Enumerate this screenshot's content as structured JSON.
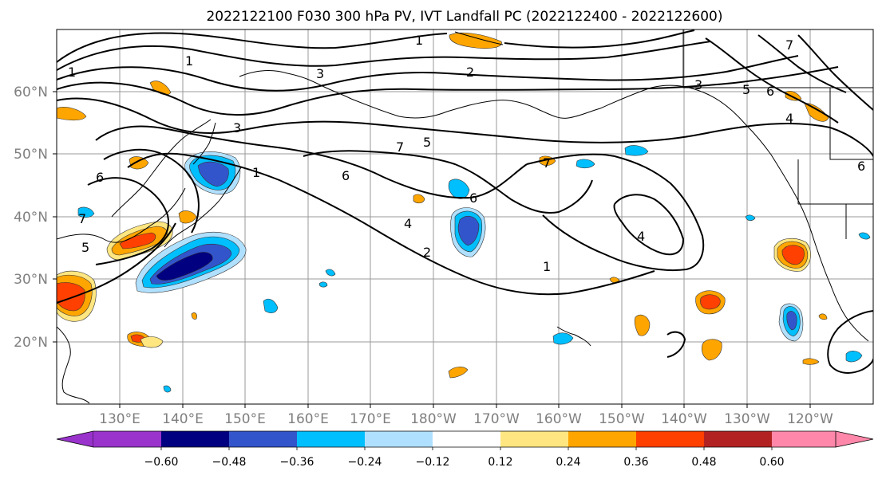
{
  "title": "2022122100 F030 300 hPa PV, IVT Landfall PC (2022122400 - 2022122600)",
  "lat_labels": [
    "60°N",
    "50°N",
    "40°N",
    "30°N",
    "20°N"
  ],
  "lon_labels": [
    "130°E",
    "140°E",
    "150°E",
    "160°E",
    "170°E",
    "180°W",
    "170°W",
    "160°W",
    "150°W",
    "140°W",
    "130°W",
    "120°W"
  ],
  "colorbar": {
    "tick_labels": [
      "−0.60",
      "−0.48",
      "−0.36",
      "−0.24",
      "−0.12",
      "0.12",
      "0.24",
      "0.36",
      "0.48",
      "0.60"
    ],
    "colors": [
      "#9933cc",
      "#000080",
      "#3355cc",
      "#00bfff",
      "#b0e0ff",
      "#ffffff",
      "#ffe680",
      "#ffa500",
      "#ff4000",
      "#b22222",
      "#ff88aa"
    ]
  },
  "contour_labels": [
    "1",
    "1",
    "2",
    "3",
    "3",
    "5",
    "6",
    "6",
    "7",
    "4",
    "2",
    "1",
    "4",
    "1",
    "6",
    "5",
    "7",
    "7",
    "1",
    "3",
    "4",
    "5",
    "6",
    "7",
    "6"
  ]
}
